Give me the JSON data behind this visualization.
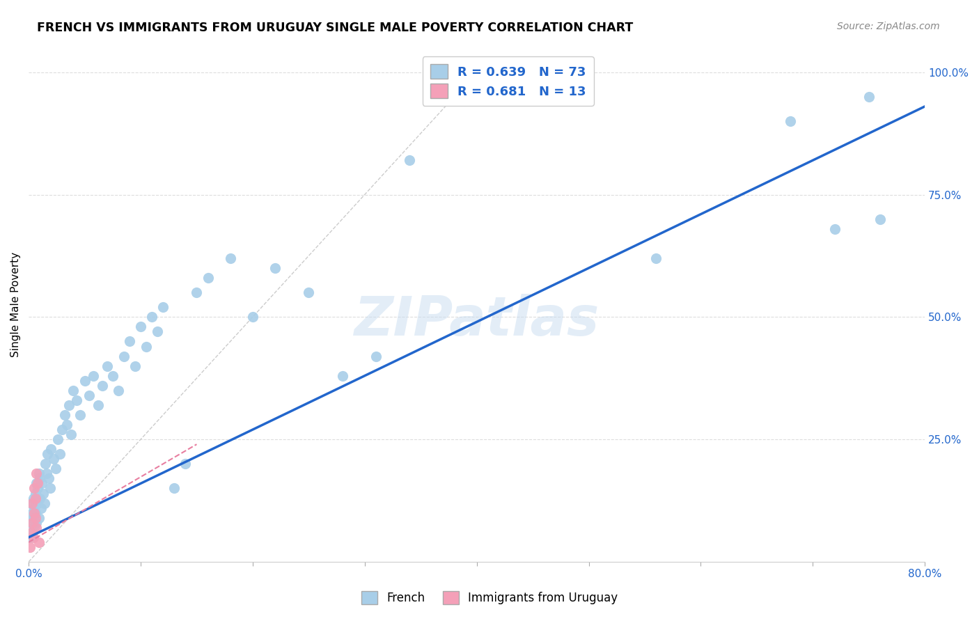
{
  "title": "FRENCH VS IMMIGRANTS FROM URUGUAY SINGLE MALE POVERTY CORRELATION CHART",
  "source": "Source: ZipAtlas.com",
  "ylabel": "Single Male Poverty",
  "x_min": 0.0,
  "x_max": 0.8,
  "y_min": 0.0,
  "y_max": 1.05,
  "y_ticks_right": [
    0.0,
    0.25,
    0.5,
    0.75,
    1.0
  ],
  "y_tick_labels_right": [
    "",
    "25.0%",
    "50.0%",
    "75.0%",
    "100.0%"
  ],
  "watermark": "ZIPatlas",
  "french_color": "#A8CEE8",
  "french_edge_color": "#A8CEE8",
  "uruguay_color": "#F4A0B8",
  "uruguay_edge_color": "#F4A0B8",
  "trendline_french_color": "#2266CC",
  "trendline_uruguay_color": "#E87EA0",
  "diagonal_color": "#CCCCCC",
  "grid_color": "#DDDDDD",
  "french_R": 0.639,
  "french_N": 73,
  "uruguay_R": 0.681,
  "uruguay_N": 13,
  "french_x": [
    0.001,
    0.002,
    0.002,
    0.003,
    0.003,
    0.004,
    0.004,
    0.005,
    0.005,
    0.006,
    0.006,
    0.007,
    0.007,
    0.008,
    0.008,
    0.009,
    0.009,
    0.01,
    0.01,
    0.011,
    0.012,
    0.013,
    0.014,
    0.015,
    0.016,
    0.017,
    0.018,
    0.019,
    0.02,
    0.022,
    0.024,
    0.026,
    0.028,
    0.03,
    0.032,
    0.034,
    0.036,
    0.038,
    0.04,
    0.043,
    0.046,
    0.05,
    0.054,
    0.058,
    0.062,
    0.066,
    0.07,
    0.075,
    0.08,
    0.085,
    0.09,
    0.095,
    0.1,
    0.105,
    0.11,
    0.115,
    0.12,
    0.13,
    0.14,
    0.15,
    0.16,
    0.18,
    0.2,
    0.22,
    0.25,
    0.28,
    0.31,
    0.34,
    0.56,
    0.68,
    0.72,
    0.75,
    0.76
  ],
  "french_y": [
    0.05,
    0.08,
    0.12,
    0.06,
    0.1,
    0.09,
    0.13,
    0.07,
    0.11,
    0.1,
    0.14,
    0.08,
    0.16,
    0.12,
    0.15,
    0.09,
    0.18,
    0.13,
    0.17,
    0.11,
    0.16,
    0.14,
    0.12,
    0.2,
    0.18,
    0.22,
    0.17,
    0.15,
    0.23,
    0.21,
    0.19,
    0.25,
    0.22,
    0.27,
    0.3,
    0.28,
    0.32,
    0.26,
    0.35,
    0.33,
    0.3,
    0.37,
    0.34,
    0.38,
    0.32,
    0.36,
    0.4,
    0.38,
    0.35,
    0.42,
    0.45,
    0.4,
    0.48,
    0.44,
    0.5,
    0.47,
    0.52,
    0.15,
    0.2,
    0.55,
    0.58,
    0.62,
    0.5,
    0.6,
    0.55,
    0.38,
    0.42,
    0.82,
    0.62,
    0.9,
    0.68,
    0.95,
    0.7
  ],
  "uruguay_x": [
    0.001,
    0.002,
    0.003,
    0.003,
    0.004,
    0.005,
    0.005,
    0.006,
    0.006,
    0.007,
    0.007,
    0.008,
    0.009
  ],
  "uruguay_y": [
    0.03,
    0.06,
    0.08,
    0.12,
    0.05,
    0.1,
    0.15,
    0.09,
    0.13,
    0.18,
    0.07,
    0.16,
    0.04
  ],
  "trendline_french_x0": 0.0,
  "trendline_french_y0": 0.05,
  "trendline_french_x1": 0.8,
  "trendline_french_y1": 0.93,
  "trendline_uruguay_x0": 0.0,
  "trendline_uruguay_y0": 0.04,
  "trendline_uruguay_x1": 0.15,
  "trendline_uruguay_y1": 0.24
}
